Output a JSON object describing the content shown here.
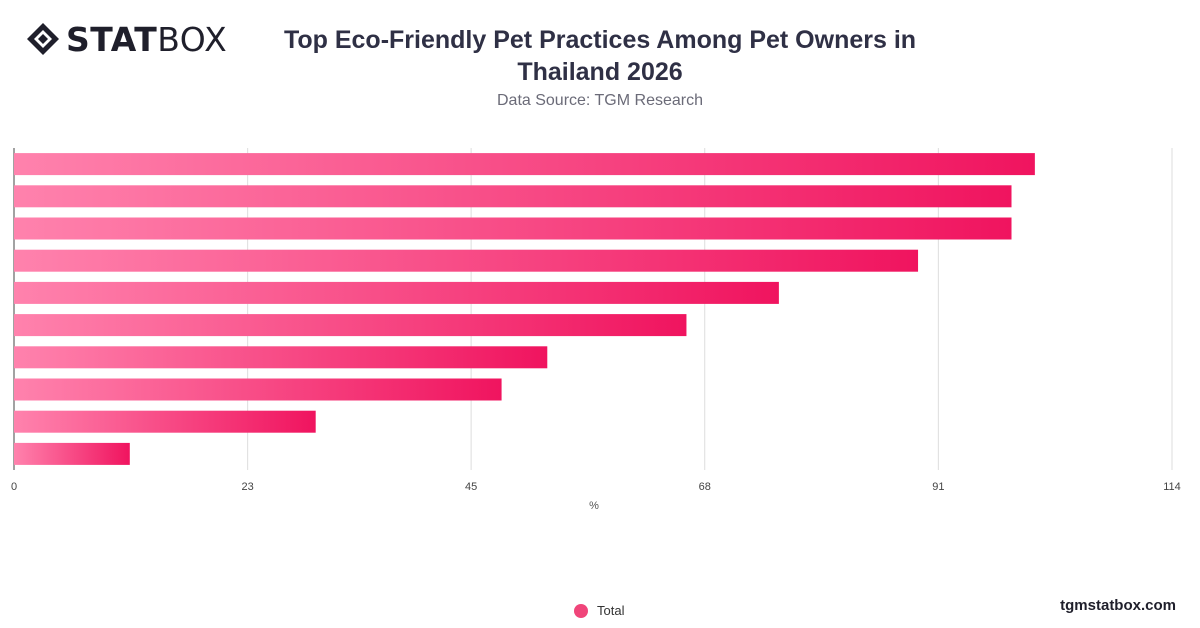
{
  "brand": {
    "bold": "STAT",
    "light": "BOX",
    "icon": "diamond-logo-icon"
  },
  "footer": {
    "credit": "tgmstatbox.com"
  },
  "colors": {
    "bar_start": "#ff82ad",
    "bar_end": "#f0145f",
    "legend": "#f0457a",
    "grid": "#dddddd"
  },
  "chart_data": {
    "type": "bar",
    "orientation": "horizontal",
    "title": "Top Eco-Friendly Pet Practices Among Pet Owners in Thailand 2026",
    "subtitle": "Data Source: TGM Research",
    "xlabel": "%",
    "xlim": [
      0,
      114
    ],
    "ticks": [
      0,
      23,
      45,
      68,
      91,
      114
    ],
    "grid": true,
    "legend_position": "bottom",
    "series": [
      {
        "name": "Total",
        "values": [
          100.5,
          98.2,
          98.2,
          89,
          75.3,
          66.2,
          52.5,
          48,
          29.7,
          11.4
        ]
      }
    ]
  }
}
